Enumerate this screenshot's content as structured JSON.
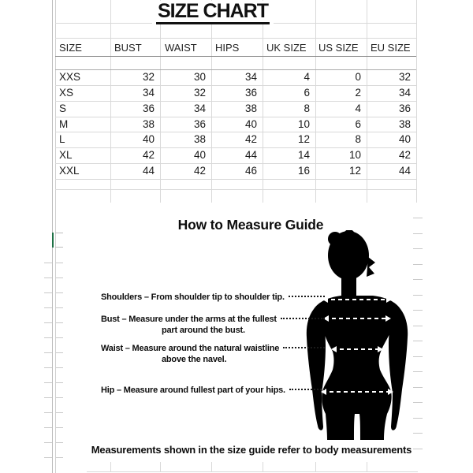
{
  "title": "SIZE CHART",
  "size_table": {
    "columns": [
      "SIZE",
      "BUST",
      "WAIST",
      "HIPS",
      "UK SIZE",
      "US SIZE",
      "EU SIZE"
    ],
    "rows": [
      [
        "XXS",
        "32",
        "30",
        "34",
        "4",
        "0",
        "32"
      ],
      [
        "XS",
        "34",
        "32",
        "36",
        "6",
        "2",
        "34"
      ],
      [
        "S",
        "36",
        "34",
        "38",
        "8",
        "4",
        "36"
      ],
      [
        "M",
        "38",
        "36",
        "40",
        "10",
        "6",
        "38"
      ],
      [
        "L",
        "40",
        "38",
        "42",
        "12",
        "8",
        "40"
      ],
      [
        "XL",
        "42",
        "40",
        "44",
        "14",
        "10",
        "42"
      ],
      [
        "XXL",
        "44",
        "42",
        "46",
        "16",
        "12",
        "44"
      ]
    ]
  },
  "measure_guide": {
    "heading": "How to Measure Guide",
    "instructions": [
      {
        "line1": "Shoulders – From shoulder tip to shoulder tip.",
        "line2": ""
      },
      {
        "line1": "Bust – Measure under the arms at the fullest",
        "line2": "part around the bust."
      },
      {
        "line1": "Waist – Measure around the natural waistline",
        "line2": "above the navel."
      },
      {
        "line1": "Hip – Measure around fullest part of your hips.",
        "line2": ""
      }
    ],
    "footnote": "Measurements shown in the size guide refer to body measurements",
    "figure": "female-body-silhouette"
  },
  "colors": {
    "gridline": "#d9d9d9",
    "header_border": "#8a8a8a",
    "selection_green": "#1e7145",
    "silhouette": "#000000",
    "text": "#1a1a1a"
  }
}
